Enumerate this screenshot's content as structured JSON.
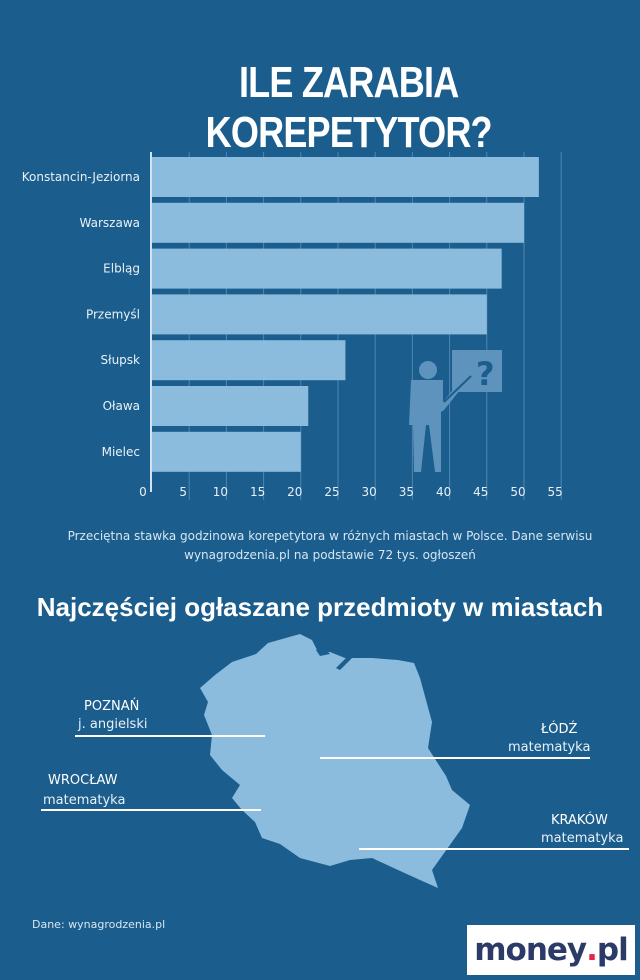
{
  "title": "ILE ZARABIA KOREPETYTOR?",
  "chart_data": {
    "type": "bar",
    "orientation": "horizontal",
    "categories": [
      "Konstancin-Jeziorna",
      "Warszawa",
      "Elbląg",
      "Przemyśl",
      "Słupsk",
      "Oława",
      "Mielec"
    ],
    "values": [
      52,
      50,
      47,
      45,
      26,
      21,
      20
    ],
    "xlim": [
      0,
      55
    ],
    "xticks": [
      "0",
      "5",
      "10",
      "15",
      "20",
      "25",
      "30",
      "35",
      "40",
      "45",
      "50",
      "55"
    ],
    "grid": true,
    "bar_color": "#8bbcdd",
    "background": "#1b5d8c"
  },
  "caption": "Przeciętna stawka godzinowa korepetytora w różnych miastach w Polsce. Dane serwisu wynagrodzenia.pl na podstawie 72 tys. ogłoszeń",
  "subtitle": "Najczęściej ogłaszane przedmioty w miastach",
  "cities": [
    {
      "city": "POZNAŃ",
      "subject": "j. angielski"
    },
    {
      "city": "ŁÓDŹ",
      "subject": "matematyka"
    },
    {
      "city": "WROCŁAW",
      "subject": "matematyka"
    },
    {
      "city": "KRAKÓW",
      "subject": "matematyka"
    }
  ],
  "source": "Dane: wynagrodzenia.pl",
  "logo": {
    "text": "money",
    "dot": ".",
    "suffix": "pl"
  }
}
